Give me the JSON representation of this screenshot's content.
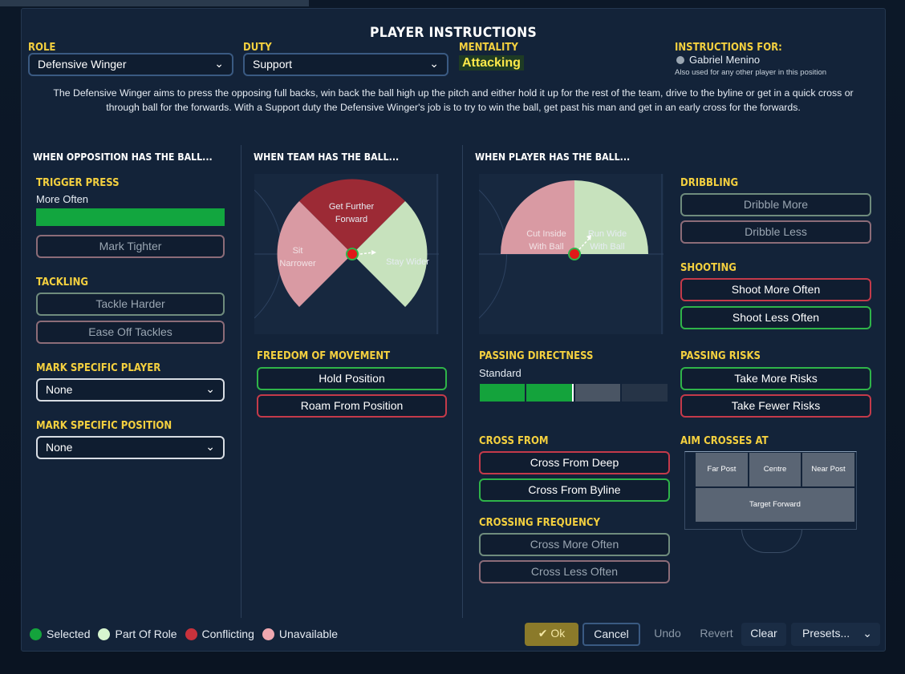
{
  "title": "PLAYER INSTRUCTIONS",
  "role": {
    "label": "ROLE",
    "value": "Defensive Winger"
  },
  "duty": {
    "label": "DUTY",
    "value": "Support"
  },
  "mentality": {
    "label": "MENTALITY",
    "value": "Attacking"
  },
  "instructions_for": {
    "label": "INSTRUCTIONS FOR:",
    "player": "Gabriel Menino",
    "note": "Also used for any other player in this position"
  },
  "description": "The Defensive Winger aims to press the opposing full backs, win back the ball high up the pitch and either hold it up for the rest of the team, drive to the byline or get in a quick cross or through ball for the forwards. With a Support duty the Defensive Winger's job is to try to win the ball, get past his man and get in an early cross for the forwards.",
  "opposition": {
    "heading": "WHEN OPPOSITION HAS THE BALL...",
    "trigger_press": {
      "label": "TRIGGER PRESS",
      "value": "More Often",
      "level": 1.0
    },
    "mark_tighter": "Mark Tighter",
    "tackling": {
      "label": "TACKLING",
      "harder": "Tackle Harder",
      "ease": "Ease Off Tackles"
    },
    "mark_player": {
      "label": "MARK SPECIFIC PLAYER",
      "value": "None"
    },
    "mark_position": {
      "label": "MARK SPECIFIC POSITION",
      "value": "None"
    }
  },
  "team": {
    "heading": "WHEN TEAM HAS THE BALL...",
    "wheel": {
      "forward": [
        "Get Further",
        "Forward"
      ],
      "narrower": [
        "Sit",
        "Narrower"
      ],
      "wider": "Stay Wider"
    },
    "freedom": {
      "label": "FREEDOM OF MOVEMENT",
      "hold": "Hold Position",
      "roam": "Roam From Position"
    }
  },
  "player": {
    "heading": "WHEN PLAYER HAS THE BALL...",
    "wheel": {
      "inside": [
        "Cut Inside",
        "With Ball"
      ],
      "wide": [
        "Run Wide",
        "With Ball"
      ]
    },
    "passing_directness": {
      "label": "PASSING DIRECTNESS",
      "value": "Standard",
      "level": 0.5
    },
    "cross_from": {
      "label": "CROSS FROM",
      "deep": "Cross From Deep",
      "byline": "Cross From Byline"
    },
    "crossing_frequency": {
      "label": "CROSSING FREQUENCY",
      "more": "Cross More Often",
      "less": "Cross Less Often"
    },
    "dribbling": {
      "label": "DRIBBLING",
      "more": "Dribble More",
      "less": "Dribble Less"
    },
    "shooting": {
      "label": "SHOOTING",
      "more": "Shoot More Often",
      "less": "Shoot Less Often"
    },
    "passing_risks": {
      "label": "PASSING RISKS",
      "more": "Take More Risks",
      "fewer": "Take Fewer Risks"
    },
    "aim_crosses": {
      "label": "AIM CROSSES AT",
      "far": "Far Post",
      "centre": "Centre",
      "near": "Near Post",
      "target": "Target Forward"
    }
  },
  "legend": {
    "selected": "Selected",
    "part": "Part Of Role",
    "conflicting": "Conflicting",
    "unavailable": "Unavailable"
  },
  "colors": {
    "selected": "#14a33c",
    "part": "#d7f5cf",
    "conflicting": "#c8323c",
    "unavailable": "#f0a8b0"
  },
  "footer": {
    "ok": "Ok",
    "cancel": "Cancel",
    "undo": "Undo",
    "revert": "Revert",
    "clear": "Clear",
    "presets": "Presets..."
  }
}
